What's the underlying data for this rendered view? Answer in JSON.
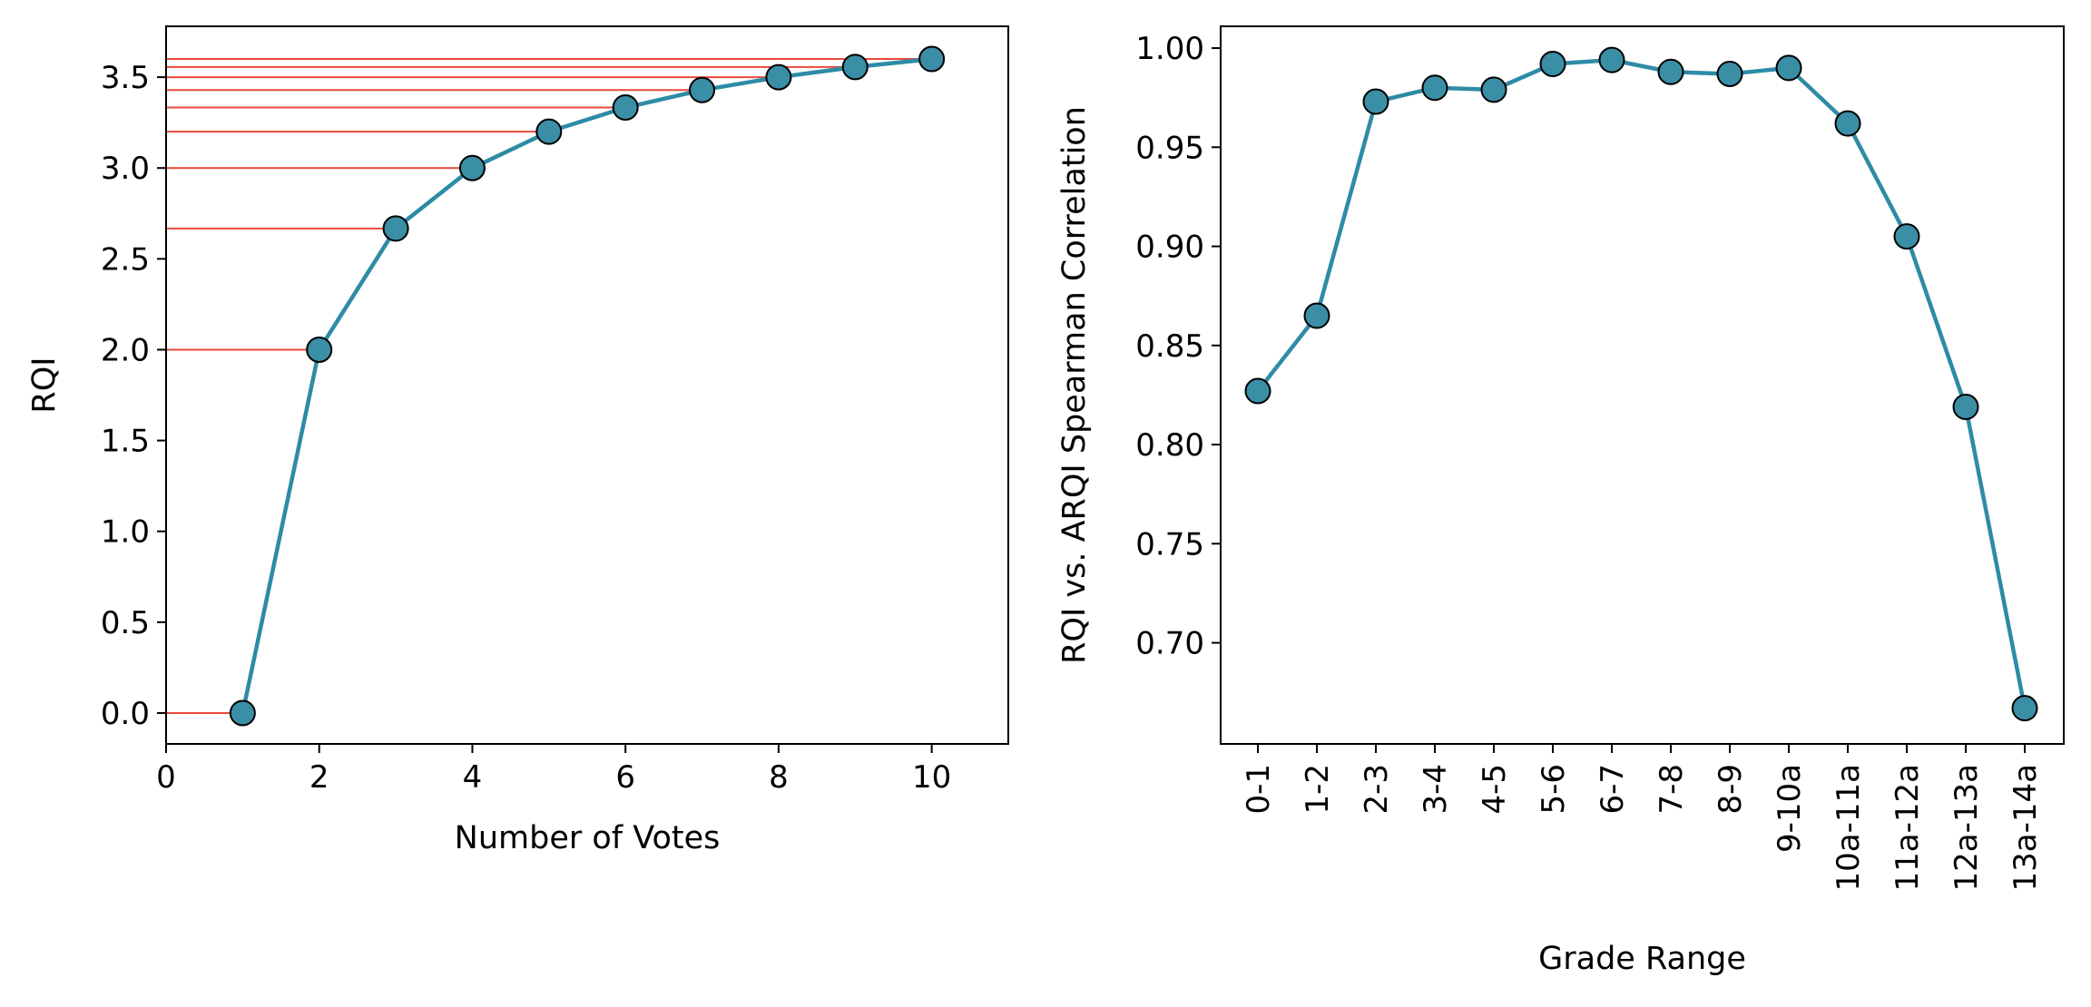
{
  "colors": {
    "series_line": "#2E8BA6",
    "marker_fill": "#3A8EA5",
    "marker_edge": "#000000",
    "guide_lines": "#E8493A",
    "axes": "#000000"
  },
  "chart_data": [
    {
      "type": "line",
      "title": "",
      "xlabel": "Number of Votes",
      "ylabel": "RQI",
      "xlim": [
        0,
        11
      ],
      "ylim": [
        -0.17,
        3.78
      ],
      "xticks": [
        0,
        2,
        4,
        6,
        8,
        10
      ],
      "xtick_labels": [
        "0",
        "2",
        "4",
        "6",
        "8",
        "10"
      ],
      "yticks": [
        0.0,
        0.5,
        1.0,
        1.5,
        2.0,
        2.5,
        3.0,
        3.5
      ],
      "ytick_labels": [
        "0.0",
        "0.5",
        "1.0",
        "1.5",
        "2.0",
        "2.5",
        "3.0",
        "3.5"
      ],
      "grid": false,
      "guide_lines": "horizontal lines from y-axis to each point",
      "series": [
        {
          "x": [
            1,
            2,
            3,
            4,
            5,
            6,
            7,
            8,
            9,
            10
          ],
          "values": [
            0.0,
            2.0,
            2.667,
            3.0,
            3.2,
            3.333,
            3.429,
            3.5,
            3.556,
            3.6
          ]
        }
      ]
    },
    {
      "type": "line",
      "title": "",
      "xlabel": "Grade Range",
      "ylabel": "RQI vs. ARQI Spearman Correlation",
      "ylim": [
        0.649,
        1.011
      ],
      "yticks": [
        0.7,
        0.75,
        0.8,
        0.85,
        0.9,
        0.95,
        1.0
      ],
      "ytick_labels": [
        "0.70",
        "0.75",
        "0.80",
        "0.85",
        "0.90",
        "0.95",
        "1.00"
      ],
      "grid": false,
      "categories": [
        "0-1",
        "1-2",
        "2-3",
        "3-4",
        "4-5",
        "5-6",
        "6-7",
        "7-8",
        "8-9",
        "9-10a",
        "10a-11a",
        "11a-12a",
        "12a-13a",
        "13a-14a"
      ],
      "series": [
        {
          "values": [
            0.827,
            0.865,
            0.973,
            0.98,
            0.979,
            0.992,
            0.994,
            0.988,
            0.987,
            0.99,
            0.962,
            0.905,
            0.819,
            0.667
          ]
        }
      ]
    }
  ]
}
